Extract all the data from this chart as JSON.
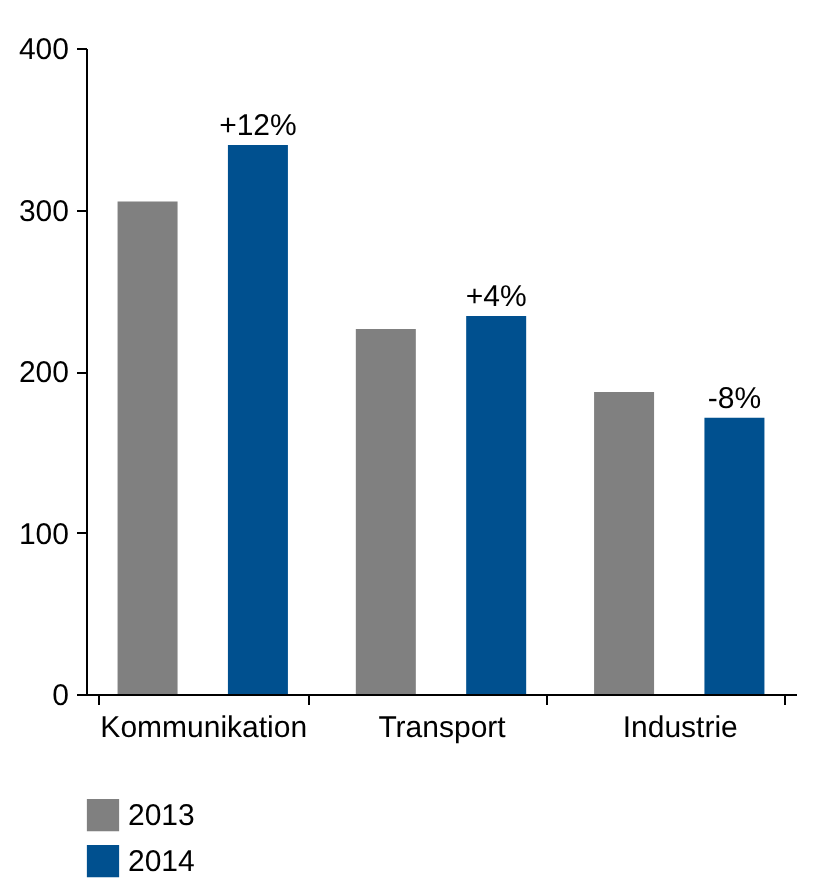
{
  "chart_data": {
    "type": "bar",
    "categories": [
      "Kommunikation",
      "Transport",
      "Industrie"
    ],
    "series": [
      {
        "name": "2013",
        "color": "#808080",
        "values": [
          305,
          226,
          187
        ]
      },
      {
        "name": "2014",
        "color": "#00508f",
        "values": [
          340,
          234,
          171
        ]
      }
    ],
    "ylim": [
      0,
      400
    ],
    "yticks": [
      0,
      100,
      200,
      300,
      400
    ],
    "legend": "bottom left",
    "annotations": [
      "+12%",
      "+4%",
      "-8%"
    ]
  }
}
